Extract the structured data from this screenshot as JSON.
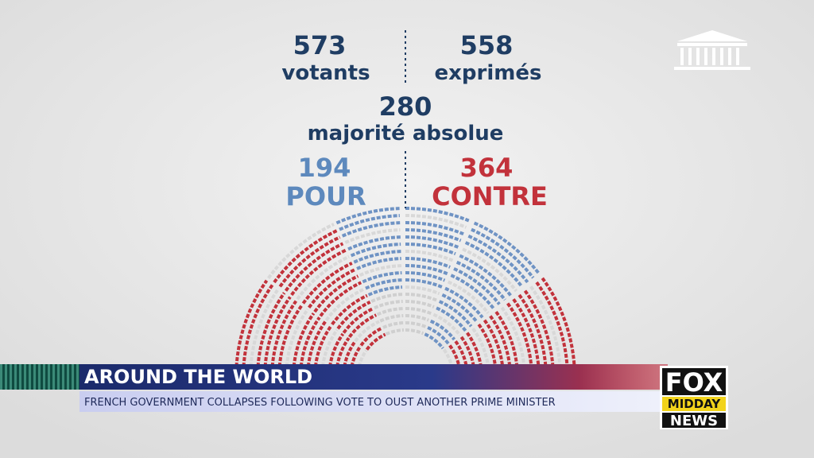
{
  "stats": {
    "votants": {
      "value": 573,
      "label": "votants"
    },
    "exprimes": {
      "value": 558,
      "label": "exprimés"
    },
    "majorite": {
      "value": 280,
      "label": "majorité absolue"
    },
    "pour": {
      "value": 194,
      "label": "POUR"
    },
    "contre": {
      "value": 364,
      "label": "CONTRE"
    }
  },
  "lower_third": {
    "section": "AROUND THE WORLD",
    "headline": "FRENCH GOVERNMENT COLLAPSES FOLLOWING VOTE TO OUST ANOTHER PRIME MINISTER"
  },
  "logo": {
    "line1": "FOX",
    "line2": "MIDDAY",
    "line3": "NEWS"
  }
}
